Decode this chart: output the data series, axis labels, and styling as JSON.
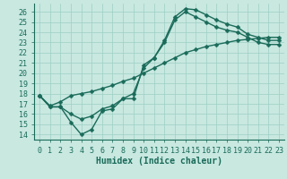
{
  "xlabel": "Humidex (Indice chaleur)",
  "bg_color": "#c8e8e0",
  "grid_color": "#9ecfc4",
  "line_color": "#1a6b5a",
  "xlim": [
    -0.5,
    23.5
  ],
  "ylim": [
    13.5,
    26.8
  ],
  "xticks": [
    0,
    1,
    2,
    3,
    4,
    5,
    6,
    7,
    8,
    9,
    10,
    11,
    12,
    13,
    14,
    15,
    16,
    17,
    18,
    19,
    20,
    21,
    22,
    23
  ],
  "yticks": [
    14,
    15,
    16,
    17,
    18,
    19,
    20,
    21,
    22,
    23,
    24,
    25,
    26
  ],
  "line1_x": [
    0,
    1,
    2,
    3,
    4,
    5,
    6,
    7,
    8,
    9,
    10,
    11,
    12,
    13,
    14,
    15,
    16,
    17,
    18,
    19,
    20,
    21,
    22,
    23
  ],
  "line1_y": [
    17.8,
    16.7,
    16.7,
    15.2,
    14.0,
    14.5,
    16.3,
    16.5,
    17.5,
    17.5,
    20.8,
    21.5,
    23.2,
    25.5,
    26.3,
    26.2,
    25.7,
    25.2,
    24.8,
    24.5,
    23.8,
    23.5,
    23.2,
    23.2
  ],
  "line2_x": [
    0,
    1,
    2,
    3,
    4,
    5,
    6,
    7,
    8,
    9,
    10,
    11,
    12,
    13,
    14,
    15,
    16,
    17,
    18,
    19,
    20,
    21,
    22,
    23
  ],
  "line2_y": [
    17.8,
    16.7,
    16.7,
    16.0,
    15.5,
    15.8,
    16.5,
    16.8,
    17.5,
    18.0,
    20.5,
    21.5,
    23.0,
    25.2,
    26.0,
    25.5,
    25.0,
    24.5,
    24.2,
    24.0,
    23.5,
    23.0,
    22.8,
    22.8
  ],
  "line3_x": [
    0,
    1,
    2,
    3,
    4,
    5,
    6,
    7,
    8,
    9,
    10,
    11,
    12,
    13,
    14,
    15,
    16,
    17,
    18,
    19,
    20,
    21,
    22,
    23
  ],
  "line3_y": [
    17.8,
    16.8,
    17.2,
    17.8,
    18.0,
    18.2,
    18.5,
    18.8,
    19.2,
    19.5,
    20.0,
    20.5,
    21.0,
    21.5,
    22.0,
    22.3,
    22.6,
    22.8,
    23.0,
    23.2,
    23.3,
    23.4,
    23.5,
    23.5
  ],
  "marker": "D",
  "marker_size": 2.5,
  "linewidth": 1.0,
  "font_size": 6,
  "xlabel_fontsize": 7
}
